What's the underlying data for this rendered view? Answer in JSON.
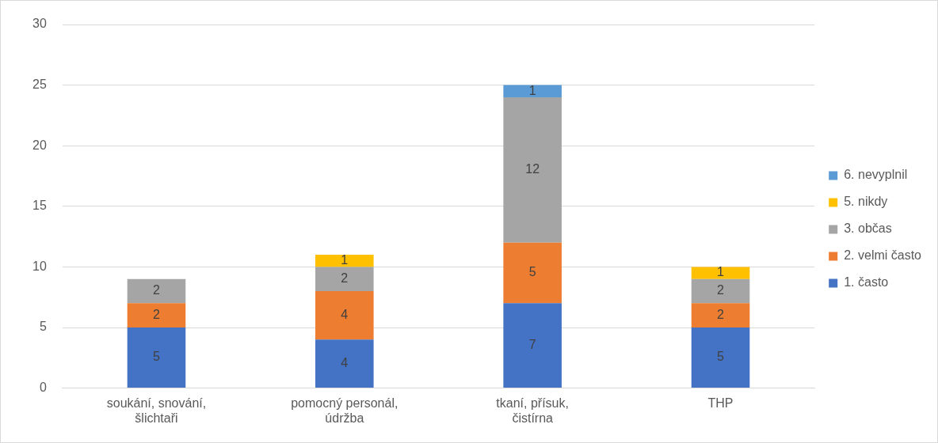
{
  "chart_data": {
    "type": "bar",
    "stacked": true,
    "categories": [
      "soukání, snování, šlichtaři",
      "pomocný personál, údržba",
      "tkaní, přísuk, čistírna",
      "THP"
    ],
    "series": [
      {
        "name": "1. často",
        "color": "#4472c4",
        "values": [
          5,
          4,
          7,
          5
        ]
      },
      {
        "name": "2. velmi často",
        "color": "#ed7d31",
        "values": [
          2,
          4,
          5,
          2
        ]
      },
      {
        "name": "3. občas",
        "color": "#a5a5a5",
        "values": [
          2,
          2,
          12,
          2
        ]
      },
      {
        "name": "5. nikdy",
        "color": "#ffc000",
        "values": [
          null,
          1,
          null,
          1
        ]
      },
      {
        "name": "6. nevyplnil",
        "color": "#5b9bd5",
        "values": [
          null,
          null,
          1,
          null
        ]
      }
    ],
    "ylim": [
      0,
      30
    ],
    "yticks": [
      0,
      5,
      10,
      15,
      20,
      25,
      30
    ],
    "grid": "y",
    "legend": "right",
    "data_labels": true
  }
}
